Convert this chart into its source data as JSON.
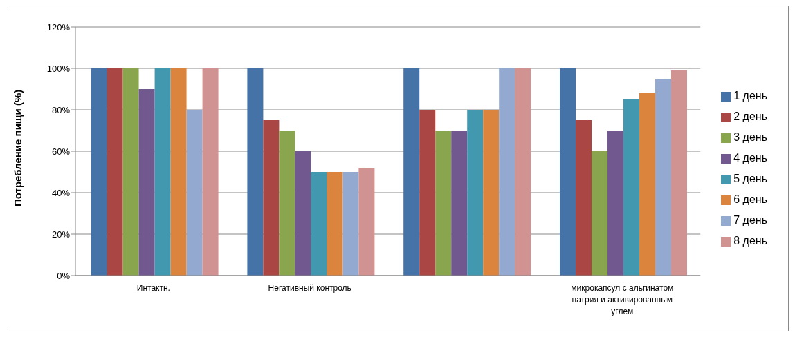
{
  "chart_data": {
    "type": "bar",
    "ylabel": "Потребление пищи (%)",
    "categories": [
      "Интактн.",
      "Негативный контроль",
      null,
      "микрокапсул с альгинатом натрия и активированным углем"
    ],
    "series": [
      {
        "name": "1 день",
        "color": "#4572a7",
        "values": [
          100,
          100,
          100,
          100
        ]
      },
      {
        "name": "2 день",
        "color": "#aa4643",
        "values": [
          100,
          75,
          80,
          75
        ]
      },
      {
        "name": "3 день",
        "color": "#89a54e",
        "values": [
          100,
          70,
          70,
          60
        ]
      },
      {
        "name": "4 день",
        "color": "#71588f",
        "values": [
          90,
          60,
          70,
          70
        ]
      },
      {
        "name": "5 день",
        "color": "#4198af",
        "values": [
          100,
          50,
          80,
          85
        ]
      },
      {
        "name": "6 день",
        "color": "#db843d",
        "values": [
          100,
          50,
          80,
          88
        ]
      },
      {
        "name": "7 день",
        "color": "#93a9cf",
        "values": [
          80,
          50,
          100,
          95
        ]
      },
      {
        "name": "8 день",
        "color": "#d19392",
        "values": [
          100,
          52,
          100,
          99
        ]
      }
    ],
    "ylim": [
      0,
      120
    ],
    "yticks": [
      {
        "value": 0,
        "label": "0%"
      },
      {
        "value": 20,
        "label": "20%"
      },
      {
        "value": 40,
        "label": "40%"
      },
      {
        "value": 60,
        "label": "60%"
      },
      {
        "value": 80,
        "label": "80%"
      },
      {
        "value": 100,
        "label": "100%"
      },
      {
        "value": 120,
        "label": "120%"
      }
    ],
    "grid": "y",
    "legend": "right"
  }
}
